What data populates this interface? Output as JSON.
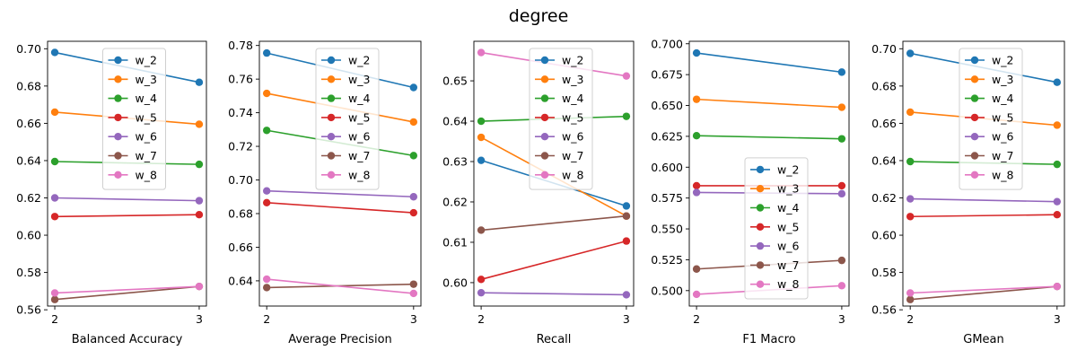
{
  "figure": {
    "title": "degree"
  },
  "colors": [
    "#1f77b4",
    "#ff7f0e",
    "#2ca02c",
    "#d62728",
    "#9467bd",
    "#8c564b",
    "#e377c2"
  ],
  "chart_data": [
    {
      "type": "line",
      "xlabel": "Balanced Accuracy",
      "x": [
        2,
        3
      ],
      "ylim": [
        0.562,
        0.704
      ],
      "yticks": [
        "0.56",
        "0.58",
        "0.60",
        "0.62",
        "0.64",
        "0.66",
        "0.68",
        "0.70"
      ],
      "legend": "upper-center",
      "series": [
        {
          "name": "w_2",
          "values": [
            0.698,
            0.682
          ]
        },
        {
          "name": "w_3",
          "values": [
            0.666,
            0.6595
          ]
        },
        {
          "name": "w_4",
          "values": [
            0.6395,
            0.638
          ]
        },
        {
          "name": "w_5",
          "values": [
            0.61,
            0.611
          ]
        },
        {
          "name": "w_6",
          "values": [
            0.62,
            0.6185
          ]
        },
        {
          "name": "w_7",
          "values": [
            0.5655,
            0.5725
          ]
        },
        {
          "name": "w_8",
          "values": [
            0.569,
            0.5725
          ]
        }
      ]
    },
    {
      "type": "line",
      "xlabel": "Average Precision",
      "x": [
        2,
        3
      ],
      "ylim": [
        0.625,
        0.7825
      ],
      "yticks": [
        "0.64",
        "0.66",
        "0.68",
        "0.70",
        "0.72",
        "0.74",
        "0.76",
        "0.78"
      ],
      "legend": "upper-center",
      "series": [
        {
          "name": "w_2",
          "values": [
            0.7755,
            0.755
          ]
        },
        {
          "name": "w_3",
          "values": [
            0.7515,
            0.7345
          ]
        },
        {
          "name": "w_4",
          "values": [
            0.7295,
            0.7145
          ]
        },
        {
          "name": "w_5",
          "values": [
            0.6865,
            0.6805
          ]
        },
        {
          "name": "w_6",
          "values": [
            0.6935,
            0.69
          ]
        },
        {
          "name": "w_7",
          "values": [
            0.636,
            0.638
          ]
        },
        {
          "name": "w_8",
          "values": [
            0.641,
            0.6325
          ]
        }
      ]
    },
    {
      "type": "line",
      "xlabel": "Recall",
      "x": [
        2,
        3
      ],
      "ylim": [
        0.5942,
        0.6598
      ],
      "yticks": [
        "0.60",
        "0.61",
        "0.62",
        "0.63",
        "0.64",
        "0.65"
      ],
      "legend": "upper-center",
      "series": [
        {
          "name": "w_2",
          "values": [
            0.6303,
            0.619
          ]
        },
        {
          "name": "w_3",
          "values": [
            0.636,
            0.6165
          ]
        },
        {
          "name": "w_4",
          "values": [
            0.64,
            0.6412
          ]
        },
        {
          "name": "w_5",
          "values": [
            0.6008,
            0.6103
          ]
        },
        {
          "name": "w_6",
          "values": [
            0.5975,
            0.597
          ]
        },
        {
          "name": "w_7",
          "values": [
            0.613,
            0.6165
          ]
        },
        {
          "name": "w_8",
          "values": [
            0.657,
            0.6512
          ]
        }
      ]
    },
    {
      "type": "line",
      "xlabel": "F1 Macro",
      "x": [
        2,
        3
      ],
      "ylim": [
        0.4875,
        0.702
      ],
      "yticks": [
        "0.500",
        "0.525",
        "0.550",
        "0.575",
        "0.600",
        "0.625",
        "0.650",
        "0.675",
        "0.700"
      ],
      "legend": "lower-center",
      "series": [
        {
          "name": "w_2",
          "values": [
            0.6925,
            0.677
          ]
        },
        {
          "name": "w_3",
          "values": [
            0.655,
            0.6485
          ]
        },
        {
          "name": "w_4",
          "values": [
            0.6255,
            0.623
          ]
        },
        {
          "name": "w_5",
          "values": [
            0.585,
            0.585
          ]
        },
        {
          "name": "w_6",
          "values": [
            0.5795,
            0.5785
          ]
        },
        {
          "name": "w_7",
          "values": [
            0.5175,
            0.5245
          ]
        },
        {
          "name": "w_8",
          "values": [
            0.497,
            0.504
          ]
        }
      ]
    },
    {
      "type": "line",
      "xlabel": "GMean",
      "x": [
        2,
        3
      ],
      "ylim": [
        0.562,
        0.704
      ],
      "yticks": [
        "0.56",
        "0.58",
        "0.60",
        "0.62",
        "0.64",
        "0.66",
        "0.68",
        "0.70"
      ],
      "legend": "upper-center",
      "series": [
        {
          "name": "w_2",
          "values": [
            0.6975,
            0.682
          ]
        },
        {
          "name": "w_3",
          "values": [
            0.666,
            0.659
          ]
        },
        {
          "name": "w_4",
          "values": [
            0.6395,
            0.638
          ]
        },
        {
          "name": "w_5",
          "values": [
            0.61,
            0.611
          ]
        },
        {
          "name": "w_6",
          "values": [
            0.6195,
            0.618
          ]
        },
        {
          "name": "w_7",
          "values": [
            0.5655,
            0.5725
          ]
        },
        {
          "name": "w_8",
          "values": [
            0.569,
            0.5725
          ]
        }
      ]
    }
  ]
}
